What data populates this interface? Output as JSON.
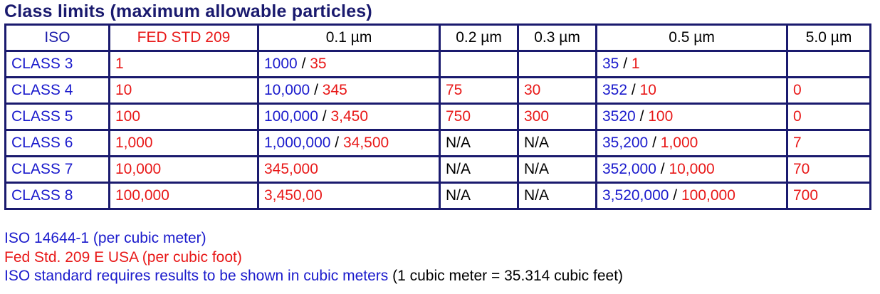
{
  "title": "Class limits (maximum allowable particles)",
  "headers": [
    "ISO",
    "FED STD 209",
    "0.1 µm",
    "0.2 µm",
    "0.3 µm",
    "0.5 µm",
    "5.0 µm"
  ],
  "rows": [
    {
      "iso": "CLASS 3",
      "fed": "1",
      "c01_iso": "1000",
      "c01_fed": "35",
      "c02": "",
      "c03": "",
      "c05_iso": "35",
      "c05_fed": "1",
      "c50": ""
    },
    {
      "iso": "CLASS 4",
      "fed": "10",
      "c01_iso": "10,000",
      "c01_fed": "345",
      "c02": "75",
      "c03": "30",
      "c05_iso": "352",
      "c05_fed": "10",
      "c50": "0"
    },
    {
      "iso": "CLASS 5",
      "fed": "100",
      "c01_iso": "100,000",
      "c01_fed": "3,450",
      "c02": "750",
      "c03": "300",
      "c05_iso": "3520",
      "c05_fed": "100",
      "c50": "0"
    },
    {
      "iso": "CLASS 6",
      "fed": "1,000",
      "c01_iso": "1,000,000",
      "c01_fed": "34,500",
      "c02": "N/A",
      "c03": "N/A",
      "c05_iso": "35,200",
      "c05_fed": "1,000",
      "c50": "7"
    },
    {
      "iso": "CLASS 7",
      "fed": "10,000",
      "c01_iso": "",
      "c01_fed": "345,000",
      "c02": "N/A",
      "c03": "N/A",
      "c05_iso": "352,000",
      "c05_fed": "10,000",
      "c50": "70"
    },
    {
      "iso": "CLASS 8",
      "fed": "100,000",
      "c01_iso": "",
      "c01_fed": "3,450,00",
      "c02": "N/A",
      "c03": "N/A",
      "c05_iso": "3,520,000",
      "c05_fed": "100,000",
      "c50": "700"
    }
  ],
  "separator": "/",
  "notes": {
    "iso": "ISO 14644-1 (per cubic meter)",
    "fed": "Fed Std. 209 E USA (per cubic foot)",
    "requirement": "ISO standard requires results to be shown in cubic meters",
    "conversion": "(1 cubic meter = 35.314 cubic feet)"
  },
  "colors": {
    "iso": "#1a1acc",
    "fed": "#e81818",
    "title": "#1a1a6e",
    "border": "#1a1a6e"
  }
}
